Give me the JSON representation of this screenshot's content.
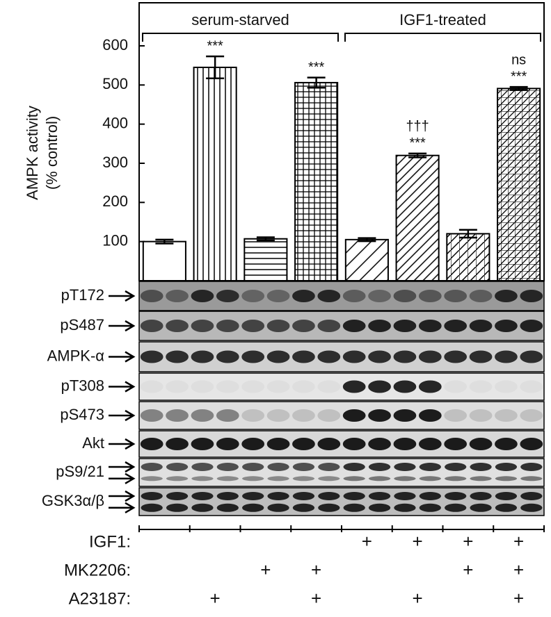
{
  "chart_data": {
    "type": "bar",
    "ylabel": [
      "AMPK activity",
      "(% control)"
    ],
    "groups": [
      "serum-starved",
      "IGF1-treated"
    ],
    "series": [
      {
        "color": "#000000",
        "values": [
          100,
          545,
          107,
          506,
          105,
          320,
          120,
          491
        ],
        "errors": [
          5,
          28,
          4,
          13,
          4,
          5,
          10,
          4
        ]
      }
    ],
    "annotations": [
      null,
      [
        "***"
      ],
      null,
      [
        "***"
      ],
      null,
      [
        "†††",
        "***"
      ],
      null,
      [
        "ns",
        "***"
      ]
    ],
    "ylim": [
      0,
      710
    ],
    "yticks": [
      100,
      200,
      300,
      400,
      500,
      600
    ],
    "blots": [
      "pT172",
      "pS487",
      "AMPK-α",
      "pT308",
      "pS473",
      "Akt",
      "pS9/21",
      "GSK3α/β"
    ],
    "treatments": [
      {
        "label": "IGF1:",
        "marks": [
          null,
          null,
          null,
          null,
          "+",
          "+",
          "+",
          "+"
        ]
      },
      {
        "label": "MK2206:",
        "marks": [
          null,
          null,
          "+",
          "+",
          null,
          null,
          "+",
          "+"
        ]
      },
      {
        "label": "A23187:",
        "marks": [
          null,
          "+",
          null,
          "+",
          null,
          "+",
          null,
          "+"
        ]
      }
    ]
  }
}
